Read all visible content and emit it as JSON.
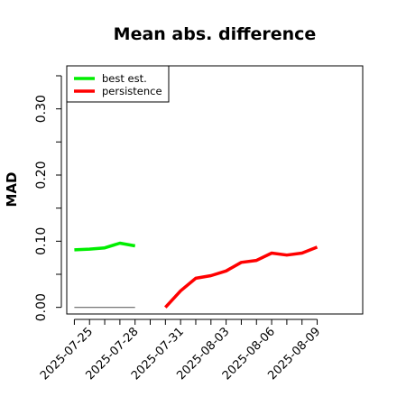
{
  "chart_data": {
    "type": "line",
    "title": "Mean abs. difference",
    "ylabel": "MAD",
    "xlabel": "",
    "ylim": [
      -0.01,
      0.365
    ],
    "yticks": [
      0.0,
      0.1,
      0.2,
      0.3
    ],
    "ytick_labels": [
      "0.00",
      "0.10",
      "0.20",
      "0.30"
    ],
    "y_minor_step": 0.05,
    "xlim": [
      "2025-07-23T12:00",
      "2025-08-12"
    ],
    "xtick_labels": [
      "2025-07-25",
      "2025-07-28",
      "2025-07-31",
      "2025-08-03",
      "2025-08-06",
      "2025-08-09"
    ],
    "legend": {
      "placement": "top-left",
      "entries": [
        "best est.",
        "persistence"
      ]
    },
    "grid": false,
    "series": [
      {
        "name": "best est.",
        "color": "#00ee00",
        "points": [
          {
            "x": "2025-07-24",
            "y": 0.087
          },
          {
            "x": "2025-07-25",
            "y": 0.088
          },
          {
            "x": "2025-07-26",
            "y": 0.09
          },
          {
            "x": "2025-07-27",
            "y": 0.097
          },
          {
            "x": "2025-07-28",
            "y": 0.093
          }
        ]
      },
      {
        "name": "persistence",
        "color": "#ff0000",
        "points": [
          {
            "x": "2025-07-30",
            "y": 0.0
          },
          {
            "x": "2025-07-31",
            "y": 0.025
          },
          {
            "x": "2025-08-01",
            "y": 0.044
          },
          {
            "x": "2025-08-02",
            "y": 0.048
          },
          {
            "x": "2025-08-03",
            "y": 0.055
          },
          {
            "x": "2025-08-04",
            "y": 0.068
          },
          {
            "x": "2025-08-05",
            "y": 0.071
          },
          {
            "x": "2025-08-06",
            "y": 0.082
          },
          {
            "x": "2025-08-07",
            "y": 0.079
          },
          {
            "x": "2025-08-08",
            "y": 0.082
          },
          {
            "x": "2025-08-09",
            "y": 0.091
          }
        ]
      },
      {
        "name": "",
        "color": "#666666",
        "points": [
          {
            "x": "2025-07-24",
            "y": 0.0
          },
          {
            "x": "2025-07-28",
            "y": 0.0
          }
        ]
      }
    ]
  }
}
